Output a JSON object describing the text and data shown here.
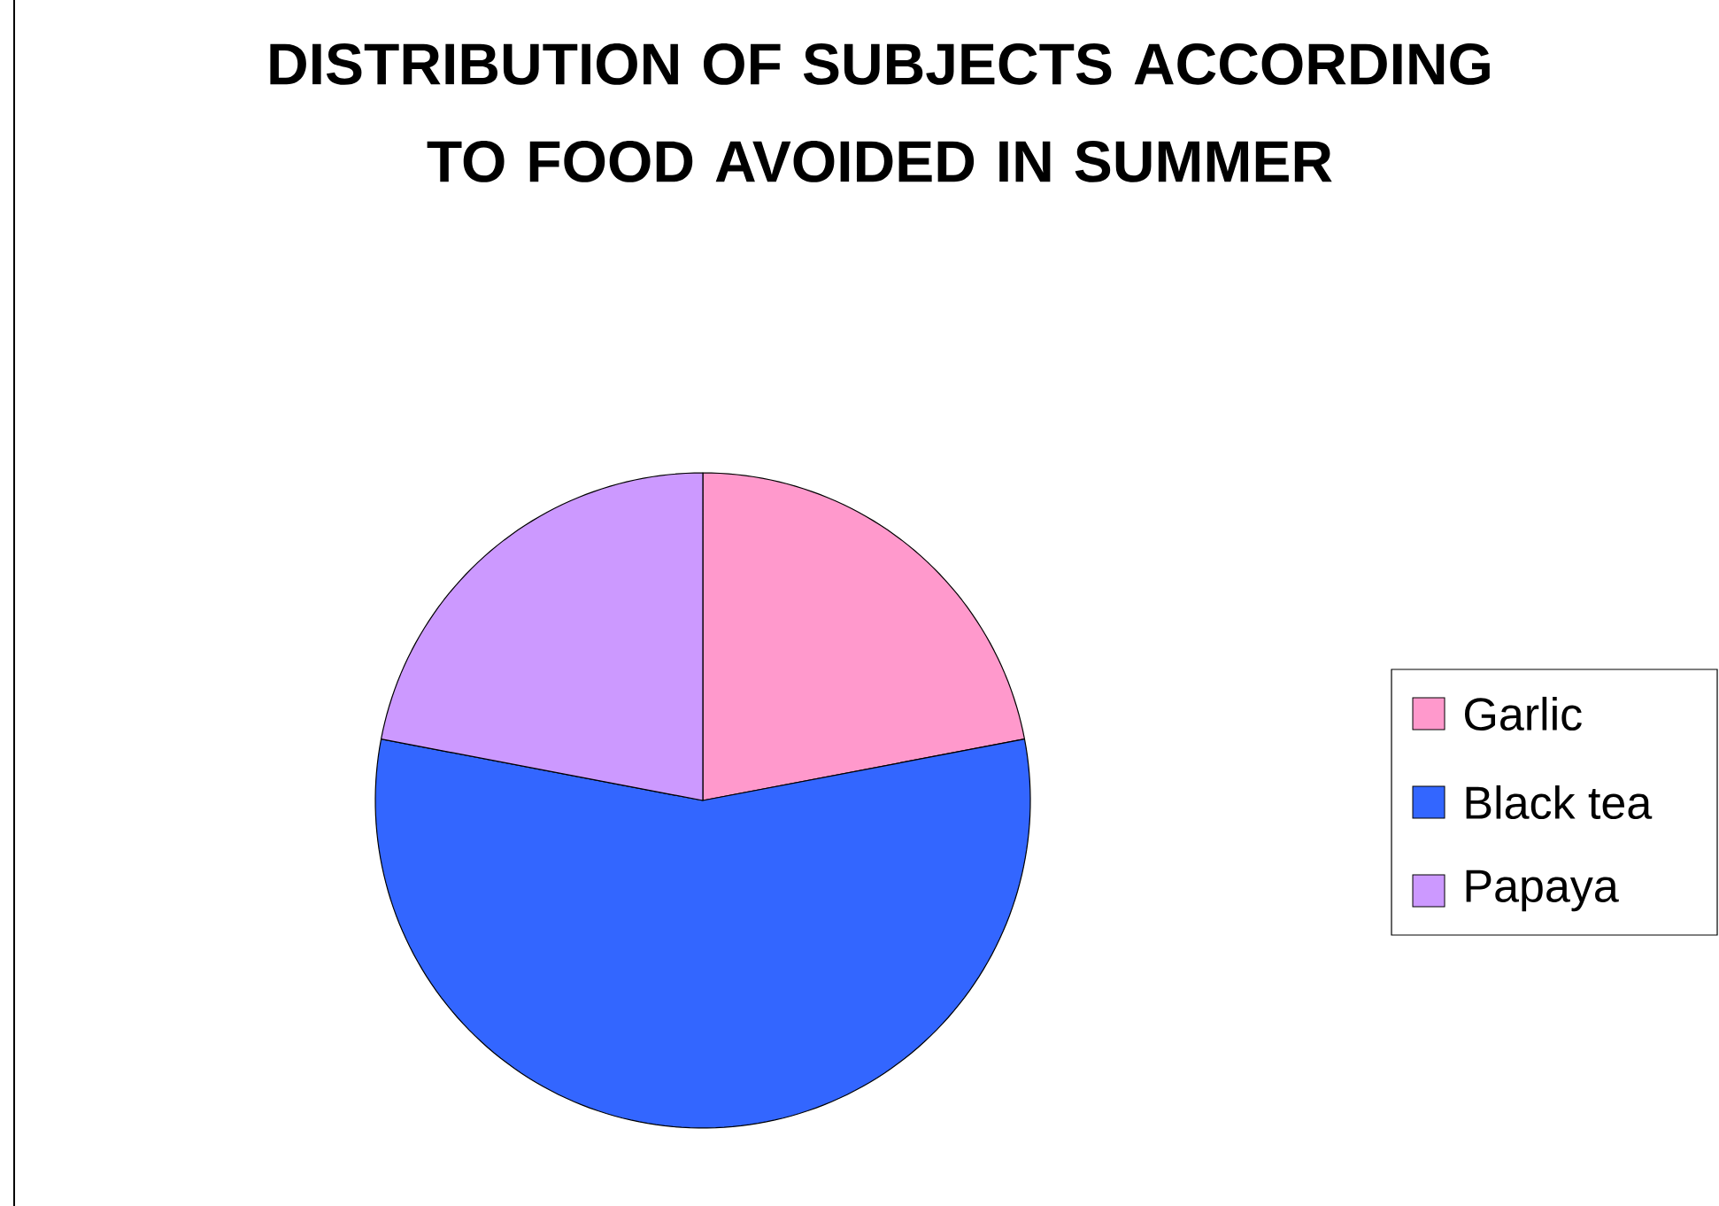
{
  "chart_data": {
    "type": "pie",
    "title": "DISTRIBUTION OF SUBJECTS ACCORDING TO FOOD AVOIDED IN SUMMER",
    "categories": [
      "Garlic",
      "Black tea",
      "Papaya"
    ],
    "values": [
      22,
      56,
      22
    ],
    "colors": [
      "#ff99cc",
      "#3366ff",
      "#cc99ff"
    ],
    "legend": "right"
  }
}
